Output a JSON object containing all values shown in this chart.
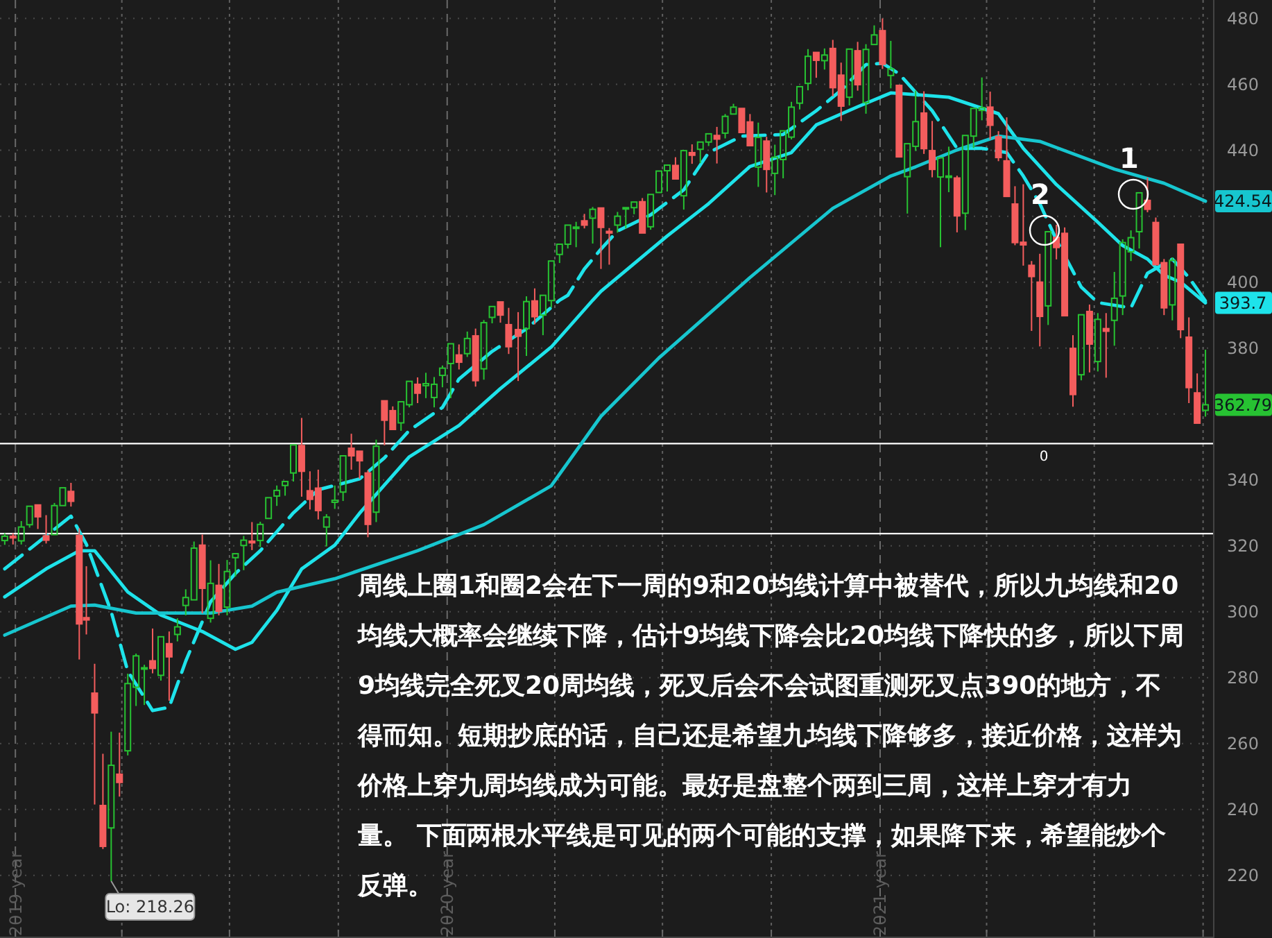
{
  "chart_data": {
    "type": "candlestick",
    "xlim": [
      "2018-12-19",
      "2021-10-10"
    ],
    "ylim": [
      201,
      485.6
    ],
    "xticks": [
      {
        "value": "2019-01-01",
        "label": "2019 year"
      },
      {
        "value": "2019-04-01",
        "label": null
      },
      {
        "value": "2019-07-01",
        "label": null
      },
      {
        "value": "2019-10-01",
        "label": null
      },
      {
        "value": "2020-01-01",
        "label": "2020 year"
      },
      {
        "value": "2020-04-01",
        "label": null
      },
      {
        "value": "2020-07-01",
        "label": null
      },
      {
        "value": "2020-10-01",
        "label": null
      },
      {
        "value": "2021-01-01",
        "label": "2021 year"
      },
      {
        "value": "2021-04-01",
        "label": null
      },
      {
        "value": "2021-07-01",
        "label": null
      },
      {
        "value": "2021-10-01",
        "label": null
      }
    ],
    "yticks": [
      220,
      240,
      260,
      280,
      300,
      320,
      340,
      {
        "value": 360,
        "label": null
      },
      380,
      400,
      {
        "value": 420,
        "label": null
      },
      440,
      460,
      480
    ],
    "grid": true,
    "x": [
      "2018-12-23",
      "2018-12-30",
      "2019-01-06",
      "2019-01-13",
      "2019-01-20",
      "2019-01-27",
      "2019-02-03",
      "2019-02-10",
      "2019-02-17",
      "2019-02-24",
      "2019-03-02",
      "2019-03-09",
      "2019-03-16",
      "2019-03-23",
      "2019-03-30",
      "2019-04-06",
      "2019-04-13",
      "2019-04-20",
      "2019-04-27",
      "2019-05-04",
      "2019-05-11",
      "2019-05-18",
      "2019-05-25",
      "2019-06-01",
      "2019-06-08",
      "2019-06-15",
      "2019-06-22",
      "2019-06-29",
      "2019-07-06",
      "2019-07-13",
      "2019-07-20",
      "2019-07-27",
      "2019-08-03",
      "2019-08-10",
      "2019-08-17",
      "2019-08-24",
      "2019-08-31",
      "2019-09-07",
      "2019-09-14",
      "2019-09-21",
      "2019-09-28",
      "2019-10-05",
      "2019-10-12",
      "2019-10-19",
      "2019-10-26",
      "2019-11-02",
      "2019-11-09",
      "2019-11-16",
      "2019-11-23",
      "2019-11-30",
      "2019-12-07",
      "2019-12-14",
      "2019-12-21",
      "2019-12-28",
      "2020-01-04",
      "2020-01-11",
      "2020-01-18",
      "2020-01-25",
      "2020-02-01",
      "2020-02-08",
      "2020-02-15",
      "2020-02-22",
      "2020-03-01",
      "2020-03-08",
      "2020-03-15",
      "2020-03-22",
      "2020-03-29",
      "2020-04-05",
      "2020-04-12",
      "2020-04-19",
      "2020-04-26",
      "2020-05-03",
      "2020-05-10",
      "2020-05-17",
      "2020-05-24",
      "2020-05-31",
      "2020-06-07",
      "2020-06-14",
      "2020-06-21",
      "2020-06-28",
      "2020-07-05",
      "2020-07-12",
      "2020-07-19",
      "2020-07-26",
      "2020-08-02",
      "2020-08-09",
      "2020-08-16",
      "2020-08-23",
      "2020-08-30",
      "2020-09-06",
      "2020-09-13",
      "2020-09-20",
      "2020-09-27",
      "2020-10-04",
      "2020-10-11",
      "2020-10-18",
      "2020-10-25",
      "2020-11-01",
      "2020-11-08",
      "2020-11-15",
      "2020-11-22",
      "2020-11-29",
      "2020-12-06",
      "2020-12-13",
      "2020-12-20",
      "2020-12-27",
      "2021-01-03",
      "2021-01-10",
      "2021-01-17",
      "2021-01-24",
      "2021-01-31",
      "2021-02-07",
      "2021-02-14",
      "2021-02-21",
      "2021-02-28",
      "2021-03-07",
      "2021-03-14",
      "2021-03-21",
      "2021-03-28",
      "2021-04-04",
      "2021-04-11",
      "2021-04-18",
      "2021-04-25",
      "2021-05-02",
      "2021-05-09",
      "2021-05-16",
      "2021-05-23",
      "2021-05-30",
      "2021-06-06",
      "2021-06-13",
      "2021-06-20",
      "2021-06-27",
      "2021-07-04",
      "2021-07-11",
      "2021-07-18",
      "2021-07-25",
      "2021-08-01",
      "2021-08-08",
      "2021-08-15",
      "2021-08-22",
      "2021-08-29",
      "2021-09-05",
      "2021-09-12",
      "2021-09-19",
      "2021-09-26",
      "2021-10-03"
    ],
    "ohlc": [
      [
        321.6,
        323.8,
        320.3,
        322.9
      ],
      [
        322.9,
        323.8,
        320.4,
        322.4
      ],
      [
        321.5,
        327.5,
        320.4,
        325.7
      ],
      [
        326.4,
        332,
        325.5,
        332
      ],
      [
        332.4,
        333,
        325.1,
        328.8
      ],
      [
        323,
        329.3,
        320.7,
        321.7
      ],
      [
        323.4,
        333,
        323.4,
        332.2
      ],
      [
        332.2,
        337.6,
        331.9,
        337.6
      ],
      [
        336.5,
        339.1,
        331.9,
        333.5
      ],
      [
        323.1,
        325.3,
        285.5,
        296.3
      ],
      [
        298.2,
        313.8,
        293.1,
        297.5
      ],
      [
        275.3,
        284.2,
        241.5,
        269.3
      ],
      [
        241.2,
        256.9,
        228,
        228.8
      ],
      [
        234.4,
        263.6,
        218.26,
        253.4
      ],
      [
        250.7,
        263.3,
        243.9,
        248.2
      ],
      [
        257.8,
        281.2,
        256.4,
        278.2
      ],
      [
        277.1,
        287.3,
        271.4,
        286.6
      ],
      [
        282.6,
        283.9,
        271.7,
        283
      ],
      [
        285.1,
        294.9,
        281.3,
        282.8
      ],
      [
        280.7,
        293,
        279.1,
        292.4
      ],
      [
        290.3,
        294,
        273,
        286.3
      ],
      [
        293.1,
        298,
        291,
        295.4
      ],
      [
        301.9,
        306.8,
        298.9,
        304.3
      ],
      [
        303.6,
        321.3,
        303.1,
        319.3
      ],
      [
        320.2,
        323.4,
        299.5,
        307.1
      ],
      [
        298,
        315.6,
        296.7,
        308.6
      ],
      [
        308,
        314.5,
        298.9,
        300.1
      ],
      [
        301.4,
        315.7,
        298.9,
        312.2
      ],
      [
        316.4,
        317.9,
        310.7,
        317.6
      ],
      [
        320.1,
        323,
        312.6,
        321.7
      ],
      [
        321.4,
        327.2,
        318.7,
        320.9
      ],
      [
        321.6,
        327.3,
        319.6,
        326.5
      ],
      [
        328.3,
        335,
        327.7,
        334.6
      ],
      [
        335.1,
        338.3,
        332.1,
        336.8
      ],
      [
        338.3,
        339.7,
        335.2,
        339.5
      ],
      [
        342.1,
        350.7,
        339.5,
        350.6
      ],
      [
        350.4,
        358.8,
        334.9,
        342.6
      ],
      [
        336.7,
        342.6,
        331,
        334.1
      ],
      [
        337.5,
        343.1,
        328,
        330.7
      ],
      [
        325.7,
        329.6,
        319.8,
        328.7
      ],
      [
        333.2,
        338.3,
        331.2,
        333.8
      ],
      [
        336.3,
        347.4,
        333.6,
        347.3
      ],
      [
        349.6,
        354,
        343.1,
        347.3
      ],
      [
        348.7,
        349.3,
        340.4,
        345.8
      ],
      [
        342.1,
        342.9,
        322.6,
        326.5
      ],
      [
        330.2,
        352.2,
        327.2,
        350.2
      ],
      [
        364,
        364.4,
        350.5,
        358.1
      ],
      [
        361,
        362.3,
        354.7,
        355.3
      ],
      [
        357.3,
        364.2,
        354.9,
        363.7
      ],
      [
        362.8,
        369.9,
        362,
        369.9
      ],
      [
        369,
        371.1,
        363.3,
        366.3
      ],
      [
        368.6,
        372.5,
        364.8,
        369.2
      ],
      [
        365,
        371.2,
        362,
        369
      ],
      [
        371.7,
        374.7,
        368.1,
        373.9
      ],
      [
        375.3,
        381.5,
        364.8,
        381.3
      ],
      [
        377.9,
        381.1,
        373.5,
        375.7
      ],
      [
        378.3,
        385,
        377.3,
        382.9
      ],
      [
        383.7,
        385.9,
        368.3,
        370.1
      ],
      [
        373.7,
        388.5,
        370.4,
        387.7
      ],
      [
        389.3,
        392.9,
        387.5,
        392.6
      ],
      [
        394,
        394.2,
        387.7,
        390
      ],
      [
        387.1,
        392.2,
        378.2,
        380.4
      ],
      [
        385.6,
        390.9,
        370,
        383.6
      ],
      [
        385.9,
        395.7,
        377.6,
        394.1
      ],
      [
        394.3,
        398.1,
        387.2,
        389.5
      ],
      [
        390,
        396,
        383.9,
        396
      ],
      [
        394.4,
        406.6,
        392.3,
        406.4
      ],
      [
        408.4,
        411.7,
        405.8,
        411.5
      ],
      [
        411.5,
        417.9,
        410.2,
        417.3
      ],
      [
        416.3,
        418.3,
        410.6,
        416.7
      ],
      [
        418.6,
        420.7,
        416.3,
        417.3
      ],
      [
        419.4,
        422.8,
        411.7,
        422.1
      ],
      [
        422.5,
        422.7,
        404,
        416.6
      ],
      [
        415.4,
        416.4,
        405.3,
        414.9
      ],
      [
        417.3,
        421.3,
        415,
        420
      ],
      [
        422.6,
        422.9,
        416.3,
        422.6
      ],
      [
        422.6,
        424.6,
        420.6,
        424.3
      ],
      [
        424.4,
        425.5,
        414.7,
        414.9
      ],
      [
        416.8,
        427.1,
        415.9,
        426.6
      ],
      [
        427.2,
        434.1,
        426.6,
        433.7
      ],
      [
        433.8,
        435.8,
        427.5,
        435.5
      ],
      [
        435.4,
        437.9,
        430.9,
        431.3
      ],
      [
        426.2,
        440.3,
        422,
        439.9
      ],
      [
        439.3,
        441.8,
        435.9,
        438.5
      ],
      [
        440.3,
        442.9,
        436.1,
        442.5
      ],
      [
        442.5,
        445.3,
        441.3,
        445
      ],
      [
        444.5,
        447.1,
        436,
        443.4
      ],
      [
        445.2,
        451,
        443.6,
        450.3
      ],
      [
        451,
        454.1,
        450.7,
        453.1
      ],
      [
        452.7,
        453.2,
        445.3,
        445.4
      ],
      [
        448.6,
        451,
        441,
        441.4
      ],
      [
        434.9,
        448.4,
        428.9,
        443.9
      ],
      [
        442.8,
        444.1,
        427.2,
        434.2
      ],
      [
        433,
        441.7,
        426.4,
        437.9
      ],
      [
        437.2,
        446.3,
        431.5,
        445.9
      ],
      [
        444,
        454.7,
        443.3,
        453.1
      ],
      [
        454.3,
        459.6,
        452.4,
        459.3
      ],
      [
        460.3,
        470.7,
        458.2,
        468.5
      ],
      [
        469.7,
        470.2,
        462,
        467.3
      ],
      [
        467.2,
        470.9,
        464.5,
        468.9
      ],
      [
        470.9,
        473.5,
        456.4,
        459
      ],
      [
        462.8,
        466.6,
        448.9,
        453.4
      ],
      [
        456.1,
        470.9,
        453.6,
        470.7
      ],
      [
        470.2,
        472.9,
        458.1,
        459.9
      ],
      [
        454.5,
        472.2,
        451.1,
        470.6
      ],
      [
        472.1,
        477.9,
        472,
        475
      ],
      [
        476.3,
        480,
        464.7,
        466.1
      ],
      [
        462.7,
        473.2,
        458.8,
        464.7
      ],
      [
        459.7,
        460,
        437.9,
        438
      ],
      [
        432,
        442,
        420.8,
        442
      ],
      [
        441.2,
        458.1,
        439.8,
        448.7
      ],
      [
        451.3,
        457.9,
        438.9,
        440.5
      ],
      [
        439.9,
        448.9,
        431.8,
        434.2
      ],
      [
        431.9,
        437.8,
        410.6,
        437.7
      ],
      [
        432,
        441.1,
        427.3,
        432.2
      ],
      [
        431.6,
        432.3,
        415.1,
        420.1
      ],
      [
        420.9,
        444.9,
        415.8,
        444.5
      ],
      [
        444.3,
        453,
        440.7,
        452.7
      ],
      [
        452.1,
        462.1,
        449.1,
        452.9
      ],
      [
        453.1,
        457.8,
        443.3,
        447.6
      ],
      [
        444.1,
        445.8,
        436.7,
        437.8
      ],
      [
        436.8,
        450,
        425.4,
        426
      ],
      [
        423.7,
        429.1,
        411.2,
        412
      ],
      [
        412.1,
        429.7,
        405,
        411.3
      ],
      [
        405.1,
        406.4,
        385.2,
        401.7
      ],
      [
        400,
        408.6,
        380.5,
        389.6
      ],
      [
        392.8,
        415.4,
        387,
        415.3
      ],
      [
        413.6,
        417.4,
        406.9,
        410.5
      ],
      [
        414.8,
        416.6,
        389.8,
        389.8
      ],
      [
        379.9,
        383.9,
        362.2,
        365.9
      ],
      [
        371.9,
        390.1,
        370.2,
        390.1
      ],
      [
        391.1,
        393.2,
        372.6,
        381.2
      ],
      [
        375.9,
        390.6,
        372.9,
        388.7
      ],
      [
        385.9,
        390.6,
        371,
        385.1
      ],
      [
        388.4,
        403.1,
        380.7,
        395.1
      ],
      [
        395.8,
        413,
        390,
        412
      ],
      [
        409.2,
        415.7,
        406.4,
        413.5
      ],
      [
        415.3,
        427.2,
        410.2,
        427.1
      ],
      [
        424.8,
        431.7,
        421.2,
        422.1
      ],
      [
        418.1,
        419.6,
        405.3,
        405.3
      ],
      [
        405.9,
        407,
        390,
        392.2
      ],
      [
        393.1,
        407.5,
        388.4,
        406.6
      ],
      [
        411.5,
        411.7,
        383,
        385.6
      ],
      [
        383.3,
        389.3,
        363.3,
        368
      ],
      [
        366.4,
        372.3,
        357,
        357.2
      ],
      [
        361.1,
        379.5,
        359.2,
        362.79
      ]
    ],
    "series": [
      {
        "type": "line",
        "color": "#1ee3ea",
        "line_style": "dashed",
        "x": [
          "2018-12-23",
          "2019-02-17",
          "2019-03-02",
          "2019-03-23",
          "2019-04-06",
          "2019-04-27",
          "2019-05-11",
          "2019-05-25",
          "2019-06-15",
          "2019-07-06",
          "2019-07-27",
          "2019-08-24",
          "2019-09-14",
          "2019-10-19",
          "2019-11-09",
          "2019-11-30",
          "2019-12-28",
          "2020-01-11",
          "2020-02-08",
          "2020-03-08",
          "2020-04-05",
          "2020-04-12",
          "2020-04-26",
          "2020-05-10",
          "2020-05-24",
          "2020-06-21",
          "2020-07-19",
          "2020-08-09",
          "2020-09-06",
          "2020-10-11",
          "2020-11-08",
          "2020-11-29",
          "2020-12-20",
          "2021-01-03",
          "2021-01-17",
          "2021-02-14",
          "2021-03-07",
          "2021-03-28",
          "2021-04-18",
          "2021-05-02",
          "2021-05-16",
          "2021-05-30",
          "2021-06-20",
          "2021-07-04",
          "2021-08-01",
          "2021-08-15",
          "2021-09-05",
          "2021-09-19",
          "2021-10-03"
        ],
        "values": [
          313,
          329,
          320.5,
          300,
          282,
          270,
          271,
          285,
          303,
          311.6,
          318.5,
          330,
          337,
          340.3,
          346.7,
          355,
          362,
          370.6,
          379,
          385.8,
          394.5,
          396,
          404,
          410,
          415.5,
          420.4,
          428,
          439.3,
          444.3,
          444.8,
          452,
          458.2,
          466,
          466.4,
          463.2,
          452,
          440.6,
          440.6,
          439.3,
          432.2,
          423.8,
          412.8,
          398.5,
          393.8,
          392.2,
          402.7,
          407,
          401.4,
          394.3
        ]
      },
      {
        "type": "line",
        "color": "#1ee3ea",
        "line_style": "solid",
        "x": [
          "2018-12-23",
          "2019-01-27",
          "2019-02-24",
          "2019-03-09",
          "2019-04-06",
          "2019-05-04",
          "2019-06-08",
          "2019-07-06",
          "2019-07-20",
          "2019-08-10",
          "2019-08-31",
          "2019-09-28",
          "2019-10-19",
          "2019-11-30",
          "2020-01-11",
          "2020-02-15",
          "2020-03-29",
          "2020-05-03",
          "2020-05-10",
          "2020-07-05",
          "2020-08-09",
          "2020-09-13",
          "2020-10-18",
          "2020-11-08",
          "2020-12-13",
          "2021-01-10",
          "2021-01-31",
          "2021-02-28",
          "2021-04-11",
          "2021-05-02",
          "2021-05-30",
          "2021-07-04",
          "2021-07-25",
          "2021-08-15",
          "2021-08-29",
          "2021-09-12",
          "2021-10-03"
        ],
        "values": [
          304.5,
          313,
          318.5,
          318.5,
          306,
          299,
          294,
          288.6,
          290.7,
          300.4,
          313,
          320.2,
          329.9,
          347,
          356.5,
          367.7,
          380.3,
          394.5,
          397.2,
          414,
          423.8,
          435.1,
          439.3,
          447.7,
          453.2,
          457.4,
          456.9,
          456.1,
          451.1,
          440.6,
          429.6,
          418.2,
          411.1,
          407,
          402.1,
          400,
          393.7
        ],
        "value_labels": [
          null,
          null,
          null,
          null,
          null,
          null,
          null,
          null,
          null,
          null,
          null,
          null,
          null,
          null,
          null,
          null,
          null,
          null,
          null,
          null,
          null,
          null,
          null,
          null,
          null,
          null,
          null,
          null,
          null,
          null,
          null,
          null,
          null,
          null,
          null,
          null,
          "393.7"
        ]
      },
      {
        "type": "line",
        "color": "#17c6cf",
        "line_style": "solid",
        "x": [
          "2018-12-23",
          "2019-02-17",
          "2019-03-09",
          "2019-04-13",
          "2019-06-15",
          "2019-07-20",
          "2019-08-10",
          "2019-09-28",
          "2019-12-07",
          "2020-02-01",
          "2020-03-29",
          "2020-05-10",
          "2020-06-28",
          "2020-09-13",
          "2020-11-22",
          "2021-01-10",
          "2021-01-31",
          "2021-03-07",
          "2021-04-11",
          "2021-05-16",
          "2021-07-18",
          "2021-08-29",
          "2021-10-03"
        ],
        "values": [
          292.9,
          301.7,
          302,
          299.6,
          299.6,
          301.7,
          305.9,
          310,
          318.5,
          326.4,
          338.2,
          359.3,
          377,
          401.4,
          422.4,
          432.2,
          435,
          440.1,
          444.3,
          442.7,
          434.3,
          430,
          424.54
        ],
        "value_labels": [
          null,
          null,
          null,
          null,
          null,
          null,
          null,
          null,
          null,
          null,
          null,
          null,
          null,
          null,
          null,
          null,
          null,
          null,
          null,
          null,
          null,
          null,
          "424.54"
        ]
      }
    ],
    "ref_lines": [
      {
        "axis": "y",
        "value": 351
      },
      {
        "axis": "y",
        "value": 323.7
      }
    ],
    "annotations": [
      "周线上圈1和圈2会在下一周的9和20均线计算中被替代，所以九均线和20均线大概率会继续下降，估计9均线下降会比20均线下降快的多，所以下周9均线完全死叉20周均线，死叉后会不会试图重测死叉点390的地方，不得而知。短期抄底的话，自己还是希望九均线下降够多，接近价格，这样为价格上穿九周均线成为可能。最好是盘整个两到三周，这样上穿才有力量。 下面两根水平线是可见的两个可能的支撑，如果降下来，希望能炒个反弹。",
      "Lo: 218.26",
      "1",
      "2",
      "362.79",
      "0"
    ]
  }
}
